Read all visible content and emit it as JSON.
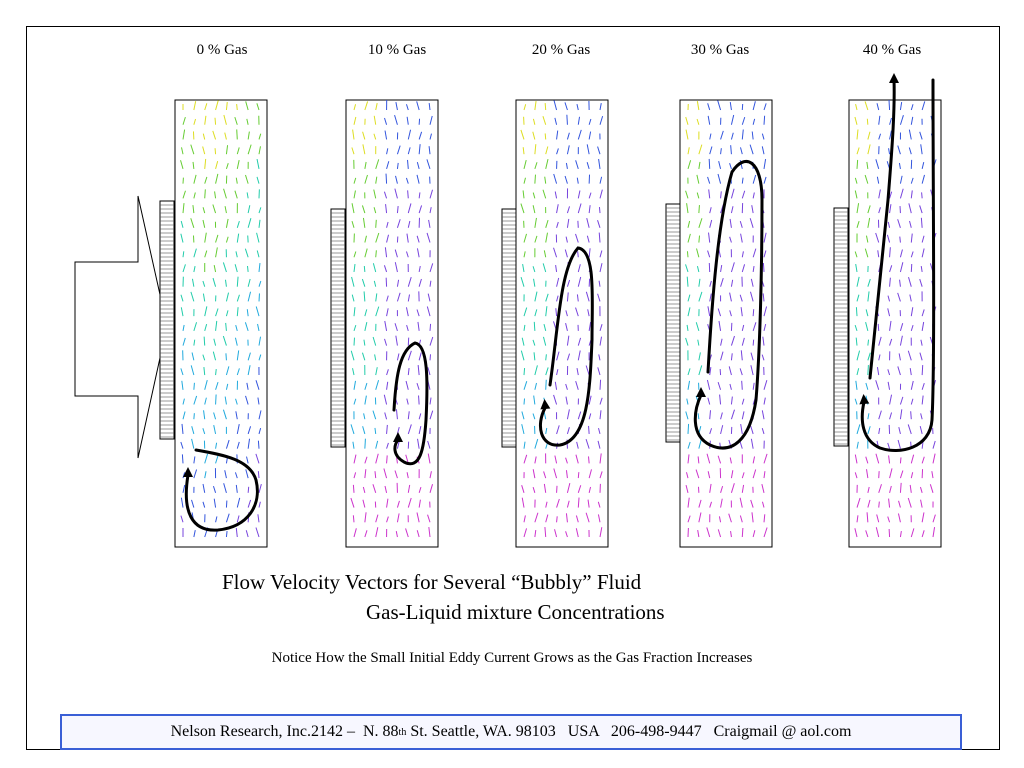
{
  "panels": [
    {
      "label": "0 % Gas"
    },
    {
      "label": "10 % Gas"
    },
    {
      "label": "20 % Gas"
    },
    {
      "label": "30 % Gas"
    },
    {
      "label": "40 % Gas"
    }
  ],
  "caption": {
    "line1": "Flow Velocity Vectors for Several “Bubbly” Fluid",
    "line2": "Gas-Liquid mixture Concentrations"
  },
  "notice": "Notice How the Small Initial Eddy Current Grows as the Gas Fraction Increases",
  "footer": {
    "company": "Nelson Research, Inc.",
    "address_pre": "2142 –  N. 88",
    "address_sup": "th",
    "address_post": " St. Seattle, WA. 98103   USA   206-498-9447   Craigmail @ aol.com"
  },
  "colors": {
    "frame": "#000000",
    "footer_border": "#3a5fd6",
    "vector_palette": [
      "#cc33cc",
      "#7744dd",
      "#3355dd",
      "#22aadd",
      "#22ccaa",
      "#66cc33",
      "#dddd22",
      "#ee8822"
    ]
  }
}
